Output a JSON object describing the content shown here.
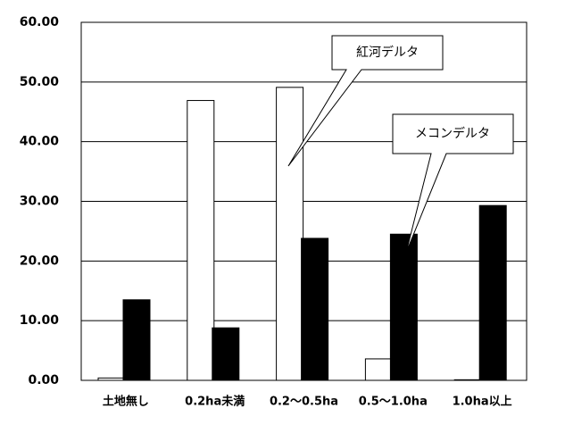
{
  "chart_data": {
    "type": "bar",
    "categories": [
      "土地無し",
      "0.2ha未満",
      "0.2～0.5ha",
      "0.5～1.0ha",
      "1.0ha以上"
    ],
    "series": [
      {
        "name": "紅河デルタ",
        "color": "#ffffff",
        "values": [
          0.4,
          46.9,
          49.1,
          3.6,
          0.1
        ]
      },
      {
        "name": "メコンデルタ",
        "color": "#000000",
        "values": [
          13.5,
          8.8,
          23.8,
          24.5,
          29.3
        ]
      }
    ],
    "ylim": [
      0,
      60
    ],
    "yticks": [
      {
        "value": 0,
        "label": "0.00"
      },
      {
        "value": 10,
        "label": "10.00"
      },
      {
        "value": 20,
        "label": "20.00"
      },
      {
        "value": 30,
        "label": "30.00"
      },
      {
        "value": 40,
        "label": "40.00"
      },
      {
        "value": 50,
        "label": "50.00"
      },
      {
        "value": 60,
        "label": "60.00"
      }
    ],
    "grid": true
  }
}
